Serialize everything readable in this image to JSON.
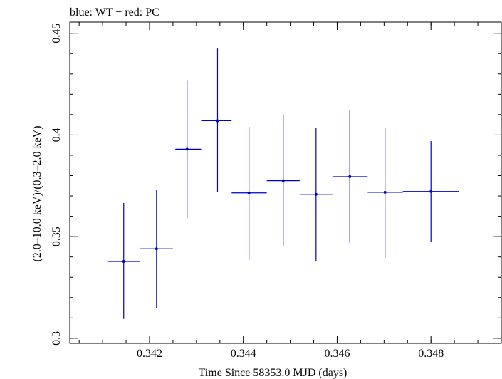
{
  "chart_data": {
    "type": "scatter",
    "title": "blue: WT − red: PC",
    "xlabel": "Time Since 58353.0 MJD (days)",
    "ylabel": "(2.0–10.0 keV)/(0.3–2.0 keV)",
    "xlim": [
      0.3403,
      0.3495
    ],
    "ylim": [
      0.2975,
      0.4555
    ],
    "x_ticks": [
      {
        "value": 0.342,
        "label": "0.342"
      },
      {
        "value": 0.344,
        "label": "0.344"
      },
      {
        "value": 0.346,
        "label": "0.346"
      },
      {
        "value": 0.348,
        "label": "0.348"
      }
    ],
    "y_ticks": [
      {
        "value": 0.3,
        "label": "0.3"
      },
      {
        "value": 0.35,
        "label": "0.35"
      },
      {
        "value": 0.4,
        "label": "0.4"
      },
      {
        "value": 0.45,
        "label": "0.45"
      }
    ],
    "series": [
      {
        "name": "WT",
        "color": "#0000cc",
        "points": [
          {
            "x": 0.34145,
            "xlo": 0.3411,
            "xhi": 0.3418,
            "y": 0.3378,
            "ylo": 0.3095,
            "yhi": 0.3665
          },
          {
            "x": 0.34215,
            "xlo": 0.3418,
            "xhi": 0.3425,
            "y": 0.344,
            "ylo": 0.315,
            "yhi": 0.373
          },
          {
            "x": 0.3428,
            "xlo": 0.34255,
            "xhi": 0.3431,
            "y": 0.393,
            "ylo": 0.359,
            "yhi": 0.427
          },
          {
            "x": 0.34345,
            "xlo": 0.3431,
            "xhi": 0.34375,
            "y": 0.407,
            "ylo": 0.372,
            "yhi": 0.4425
          },
          {
            "x": 0.34412,
            "xlo": 0.34375,
            "xhi": 0.3445,
            "y": 0.3715,
            "ylo": 0.3385,
            "yhi": 0.404
          },
          {
            "x": 0.34485,
            "xlo": 0.3445,
            "xhi": 0.3452,
            "y": 0.3775,
            "ylo": 0.3455,
            "yhi": 0.41
          },
          {
            "x": 0.34555,
            "xlo": 0.3452,
            "xhi": 0.3459,
            "y": 0.3708,
            "ylo": 0.338,
            "yhi": 0.4035
          },
          {
            "x": 0.34627,
            "xlo": 0.3459,
            "xhi": 0.34665,
            "y": 0.3795,
            "ylo": 0.347,
            "yhi": 0.412
          },
          {
            "x": 0.34702,
            "xlo": 0.34665,
            "xhi": 0.3474,
            "y": 0.3718,
            "ylo": 0.3395,
            "yhi": 0.4035
          },
          {
            "x": 0.348,
            "xlo": 0.3474,
            "xhi": 0.3486,
            "y": 0.3722,
            "ylo": 0.3475,
            "yhi": 0.397
          }
        ]
      }
    ]
  }
}
